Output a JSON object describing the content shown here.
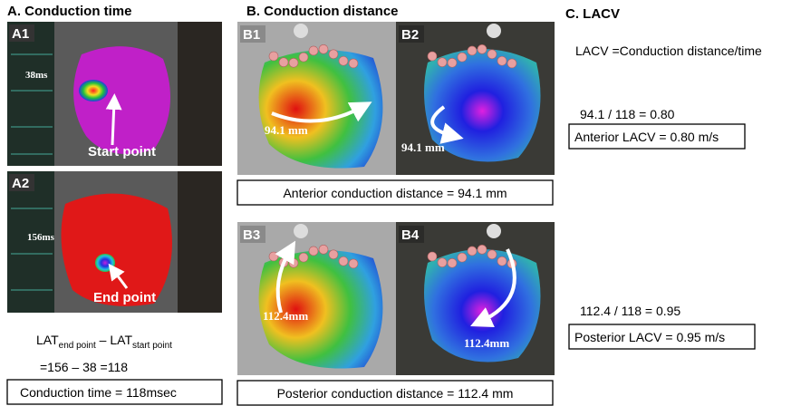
{
  "panels": [
    {
      "title": "A. Conduction time",
      "images": [
        {
          "label": "A1",
          "annotations": [
            "38ms",
            "Start point"
          ]
        },
        {
          "label": "A2",
          "annotations": [
            "156ms",
            "End point"
          ]
        }
      ],
      "formula": [
        {
          "text": "LAT"
        },
        {
          "sub": "end point"
        },
        {
          "text": " – LAT"
        },
        {
          "sub": "start point"
        }
      ],
      "calculation": "=156 – 38 =118",
      "result": "Conduction time = 118msec"
    },
    {
      "title": "B. Conduction distance",
      "images": [
        {
          "label": "B1",
          "annotations": [
            "94.1 mm"
          ]
        },
        {
          "label": "B2",
          "annotations": [
            "94.1 mm"
          ]
        },
        {
          "label": "B3",
          "annotations": [
            "112.4mm"
          ]
        },
        {
          "label": "B4",
          "annotations": [
            "112.4mm"
          ]
        }
      ],
      "results": [
        "Anterior conduction distance = 94.1 mm",
        "Posterior conduction distance = 112.4 mm"
      ]
    },
    {
      "title": "C. LACV",
      "definition": "LACV =Conduction distance/time",
      "calculations": [
        "94.1 / 118 = 0.80",
        "112.4 / 118 = 0.95"
      ],
      "results": [
        "Anterior LACV = 0.80 m/s",
        "Posterior LACV = 0.95 m/s"
      ]
    }
  ]
}
